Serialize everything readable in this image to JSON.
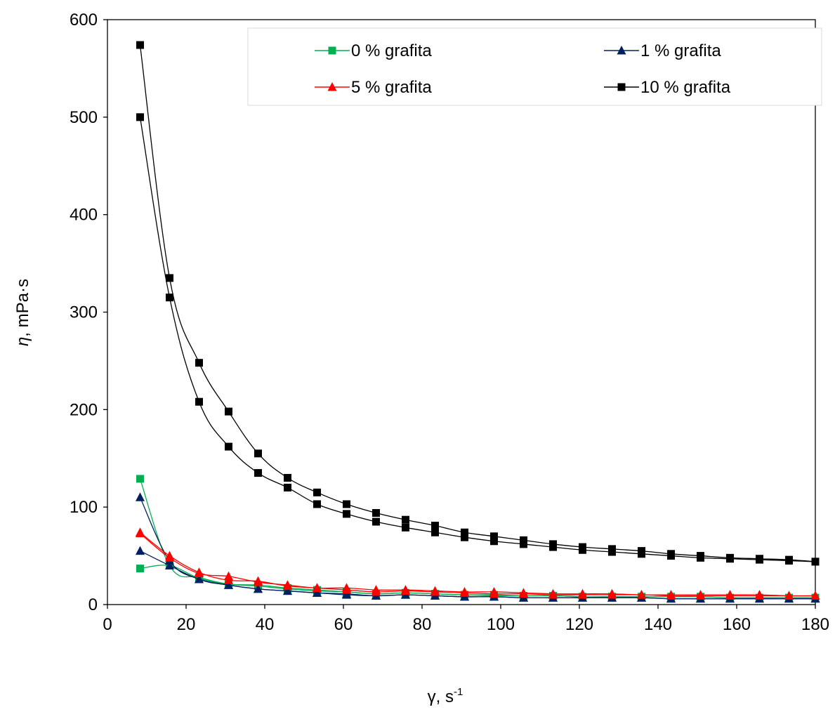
{
  "chart_data": {
    "type": "line",
    "xlabel": "γ, s",
    "xlabel_superscript": "-1",
    "ylabel_symbol": "η",
    "ylabel_unit": ", mPa·s",
    "xlim": [
      0,
      180
    ],
    "ylim": [
      0,
      600
    ],
    "xticks": [
      0,
      20,
      40,
      60,
      80,
      100,
      120,
      140,
      160,
      180
    ],
    "yticks": [
      0,
      100,
      200,
      300,
      400,
      500,
      600
    ],
    "grid": false,
    "legend_position": "top-right",
    "legend": [
      {
        "label": "0 % grafita",
        "color": "#00b050",
        "marker": "square"
      },
      {
        "label": "1 % grafita",
        "color": "#002060",
        "marker": "triangle"
      },
      {
        "label": "5 % grafita",
        "color": "#ff0000",
        "marker": "triangle"
      },
      {
        "label": "10 % grafita",
        "color": "#000000",
        "marker": "square"
      }
    ],
    "x": [
      8.3,
      15.8,
      23.3,
      30.8,
      38.3,
      45.8,
      53.3,
      60.8,
      68.3,
      75.8,
      83.3,
      90.8,
      98.3,
      105.8,
      113.3,
      120.8,
      128.3,
      135.8,
      143.3,
      150.8,
      158.3,
      165.8,
      173.3,
      180.0
    ],
    "series": [
      {
        "label_index": 0,
        "color": "#00b050",
        "marker": "square",
        "values": [
          37,
          40,
          27,
          21,
          20,
          17,
          15,
          13,
          11,
          12,
          11,
          10,
          10,
          9,
          9,
          8,
          8,
          8,
          8,
          8,
          7,
          7,
          7,
          7
        ]
      },
      {
        "label_index": 0,
        "color": "#00b050",
        "marker": "square",
        "values": [
          129,
          40,
          28,
          21,
          19,
          16,
          14,
          13,
          11,
          12,
          11,
          10,
          9,
          9,
          9,
          8,
          8,
          8,
          8,
          8,
          7,
          7,
          7,
          7
        ]
      },
      {
        "label_index": 1,
        "color": "#002060",
        "marker": "triangle",
        "values": [
          110,
          45,
          26,
          20,
          16,
          14,
          12,
          10,
          9,
          10,
          9,
          8,
          8,
          7,
          7,
          7,
          7,
          7,
          6,
          6,
          6,
          6,
          6,
          6
        ]
      },
      {
        "label_index": 1,
        "color": "#002060",
        "marker": "triangle",
        "values": [
          55,
          40,
          26,
          20,
          16,
          14,
          12,
          11,
          9,
          10,
          9,
          8,
          8,
          7,
          7,
          7,
          7,
          7,
          6,
          6,
          6,
          6,
          6,
          6
        ]
      },
      {
        "label_index": 2,
        "color": "#ff0000",
        "marker": "triangle",
        "values": [
          73,
          48,
          32,
          29,
          23,
          20,
          17,
          17,
          15,
          15,
          14,
          13,
          13,
          12,
          11,
          11,
          11,
          10,
          10,
          10,
          10,
          10,
          9,
          9
        ]
      },
      {
        "label_index": 2,
        "color": "#ff0000",
        "marker": "triangle",
        "values": [
          74,
          50,
          33,
          25,
          24,
          19,
          17,
          15,
          13,
          14,
          13,
          12,
          11,
          11,
          10,
          10,
          10,
          10,
          9,
          9,
          9,
          9,
          9,
          9
        ]
      },
      {
        "label_index": 3,
        "color": "#000000",
        "marker": "square",
        "values": [
          574,
          335,
          248,
          198,
          155,
          130,
          115,
          103,
          94,
          87,
          81,
          74,
          70,
          66,
          62,
          59,
          57,
          55,
          52,
          50,
          48,
          47,
          46,
          44
        ]
      },
      {
        "label_index": 3,
        "color": "#000000",
        "marker": "square",
        "values": [
          500,
          315,
          208,
          162,
          135,
          120,
          103,
          93,
          85,
          79,
          74,
          69,
          65,
          62,
          59,
          56,
          54,
          52,
          50,
          48,
          47,
          46,
          45,
          44
        ]
      }
    ]
  }
}
